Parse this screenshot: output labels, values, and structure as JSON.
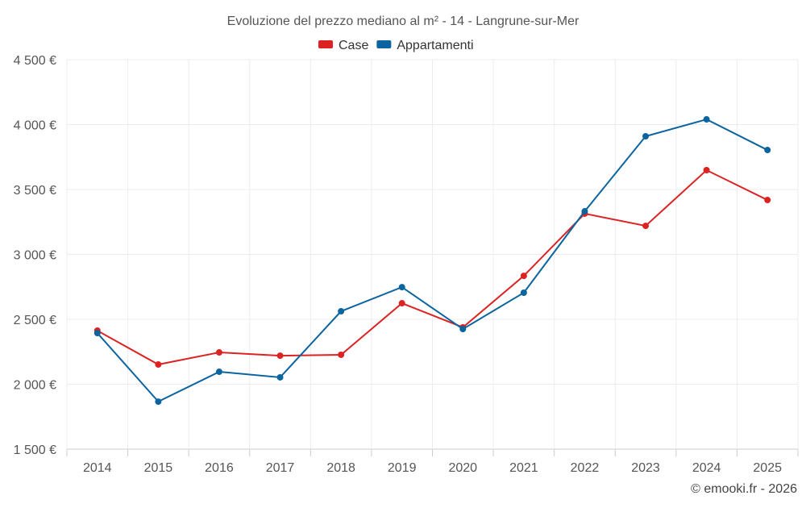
{
  "chart_data": {
    "type": "line",
    "title": "Evoluzione del prezzo mediano al m² - 14 - Langrune-sur-Mer",
    "categories": [
      "2014",
      "2015",
      "2016",
      "2017",
      "2018",
      "2019",
      "2020",
      "2021",
      "2022",
      "2023",
      "2024",
      "2025"
    ],
    "series": [
      {
        "name": "Case",
        "color": "#dd2222",
        "values": [
          2413,
          2152,
          2245,
          2220,
          2227,
          2624,
          2438,
          2835,
          3314,
          3220,
          3649,
          3419
        ]
      },
      {
        "name": "Appartamenti",
        "color": "#0a64a0",
        "values": [
          2394,
          1866,
          2096,
          2053,
          2562,
          2748,
          2425,
          2705,
          3332,
          3910,
          4040,
          3804
        ]
      }
    ],
    "ylim": [
      1500,
      4500
    ],
    "yticks": [
      1500,
      2000,
      2500,
      3000,
      3500,
      4000,
      4500
    ],
    "ytick_labels": [
      "1 500 €",
      "2 000 €",
      "2 500 €",
      "3 000 €",
      "3 500 €",
      "4 000 €",
      "4 500 €"
    ],
    "xlabel": "",
    "ylabel": "",
    "grid": true,
    "legend": "top-center"
  },
  "credit": "© emooki.fr - 2026"
}
